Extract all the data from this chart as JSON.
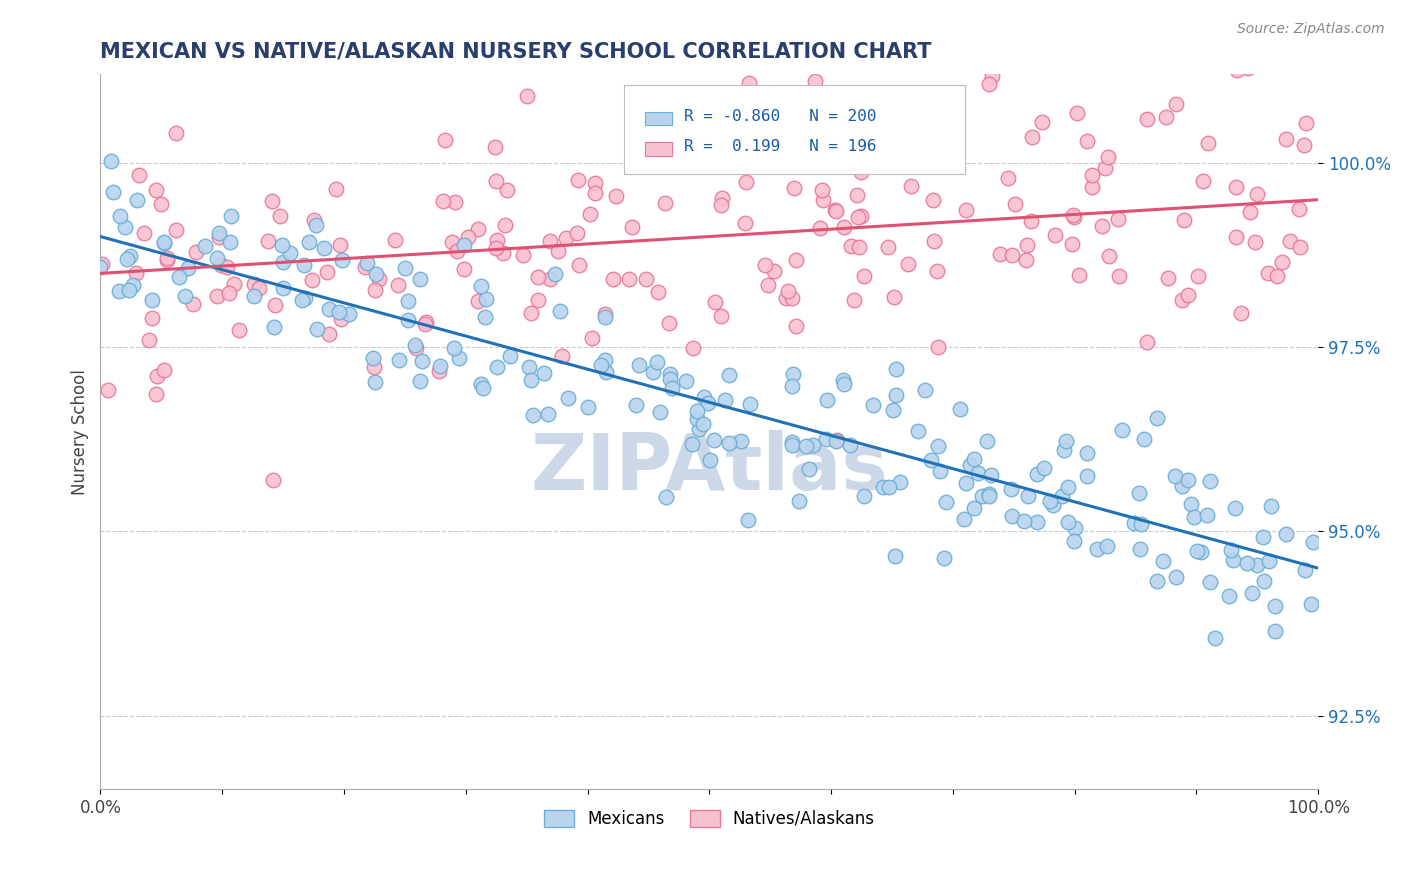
{
  "title": "MEXICAN VS NATIVE/ALASKAN NURSERY SCHOOL CORRELATION CHART",
  "source": "Source: ZipAtlas.com",
  "ylabel": "Nursery School",
  "ytick_values": [
    92.5,
    95.0,
    97.5,
    100.0
  ],
  "xmin": 0.0,
  "xmax": 100.0,
  "ymin": 91.5,
  "ymax": 101.2,
  "blue_face": "#b8d4ee",
  "blue_edge": "#6baed6",
  "blue_line": "#2171b5",
  "pink_face": "#f9c0cf",
  "pink_edge": "#e8789a",
  "pink_line": "#e05070",
  "title_color": "#2c3e6b",
  "ytick_color": "#2171b5",
  "source_color": "#888888",
  "watermark": "ZIPAtlas",
  "watermark_color": "#ccd8e8",
  "grid_color": "#cccccc",
  "legend_text_color": "#1a5ca8",
  "n1": 200,
  "n2": 196,
  "r1": -0.86,
  "r2": 0.199,
  "blue_x_start": 0.0,
  "blue_x_end": 100.0,
  "blue_y_start": 99.0,
  "blue_y_end": 94.5,
  "pink_y_start": 98.5,
  "pink_y_end": 99.5,
  "pink_y_center": 99.0,
  "pink_noise_std": 1.0
}
